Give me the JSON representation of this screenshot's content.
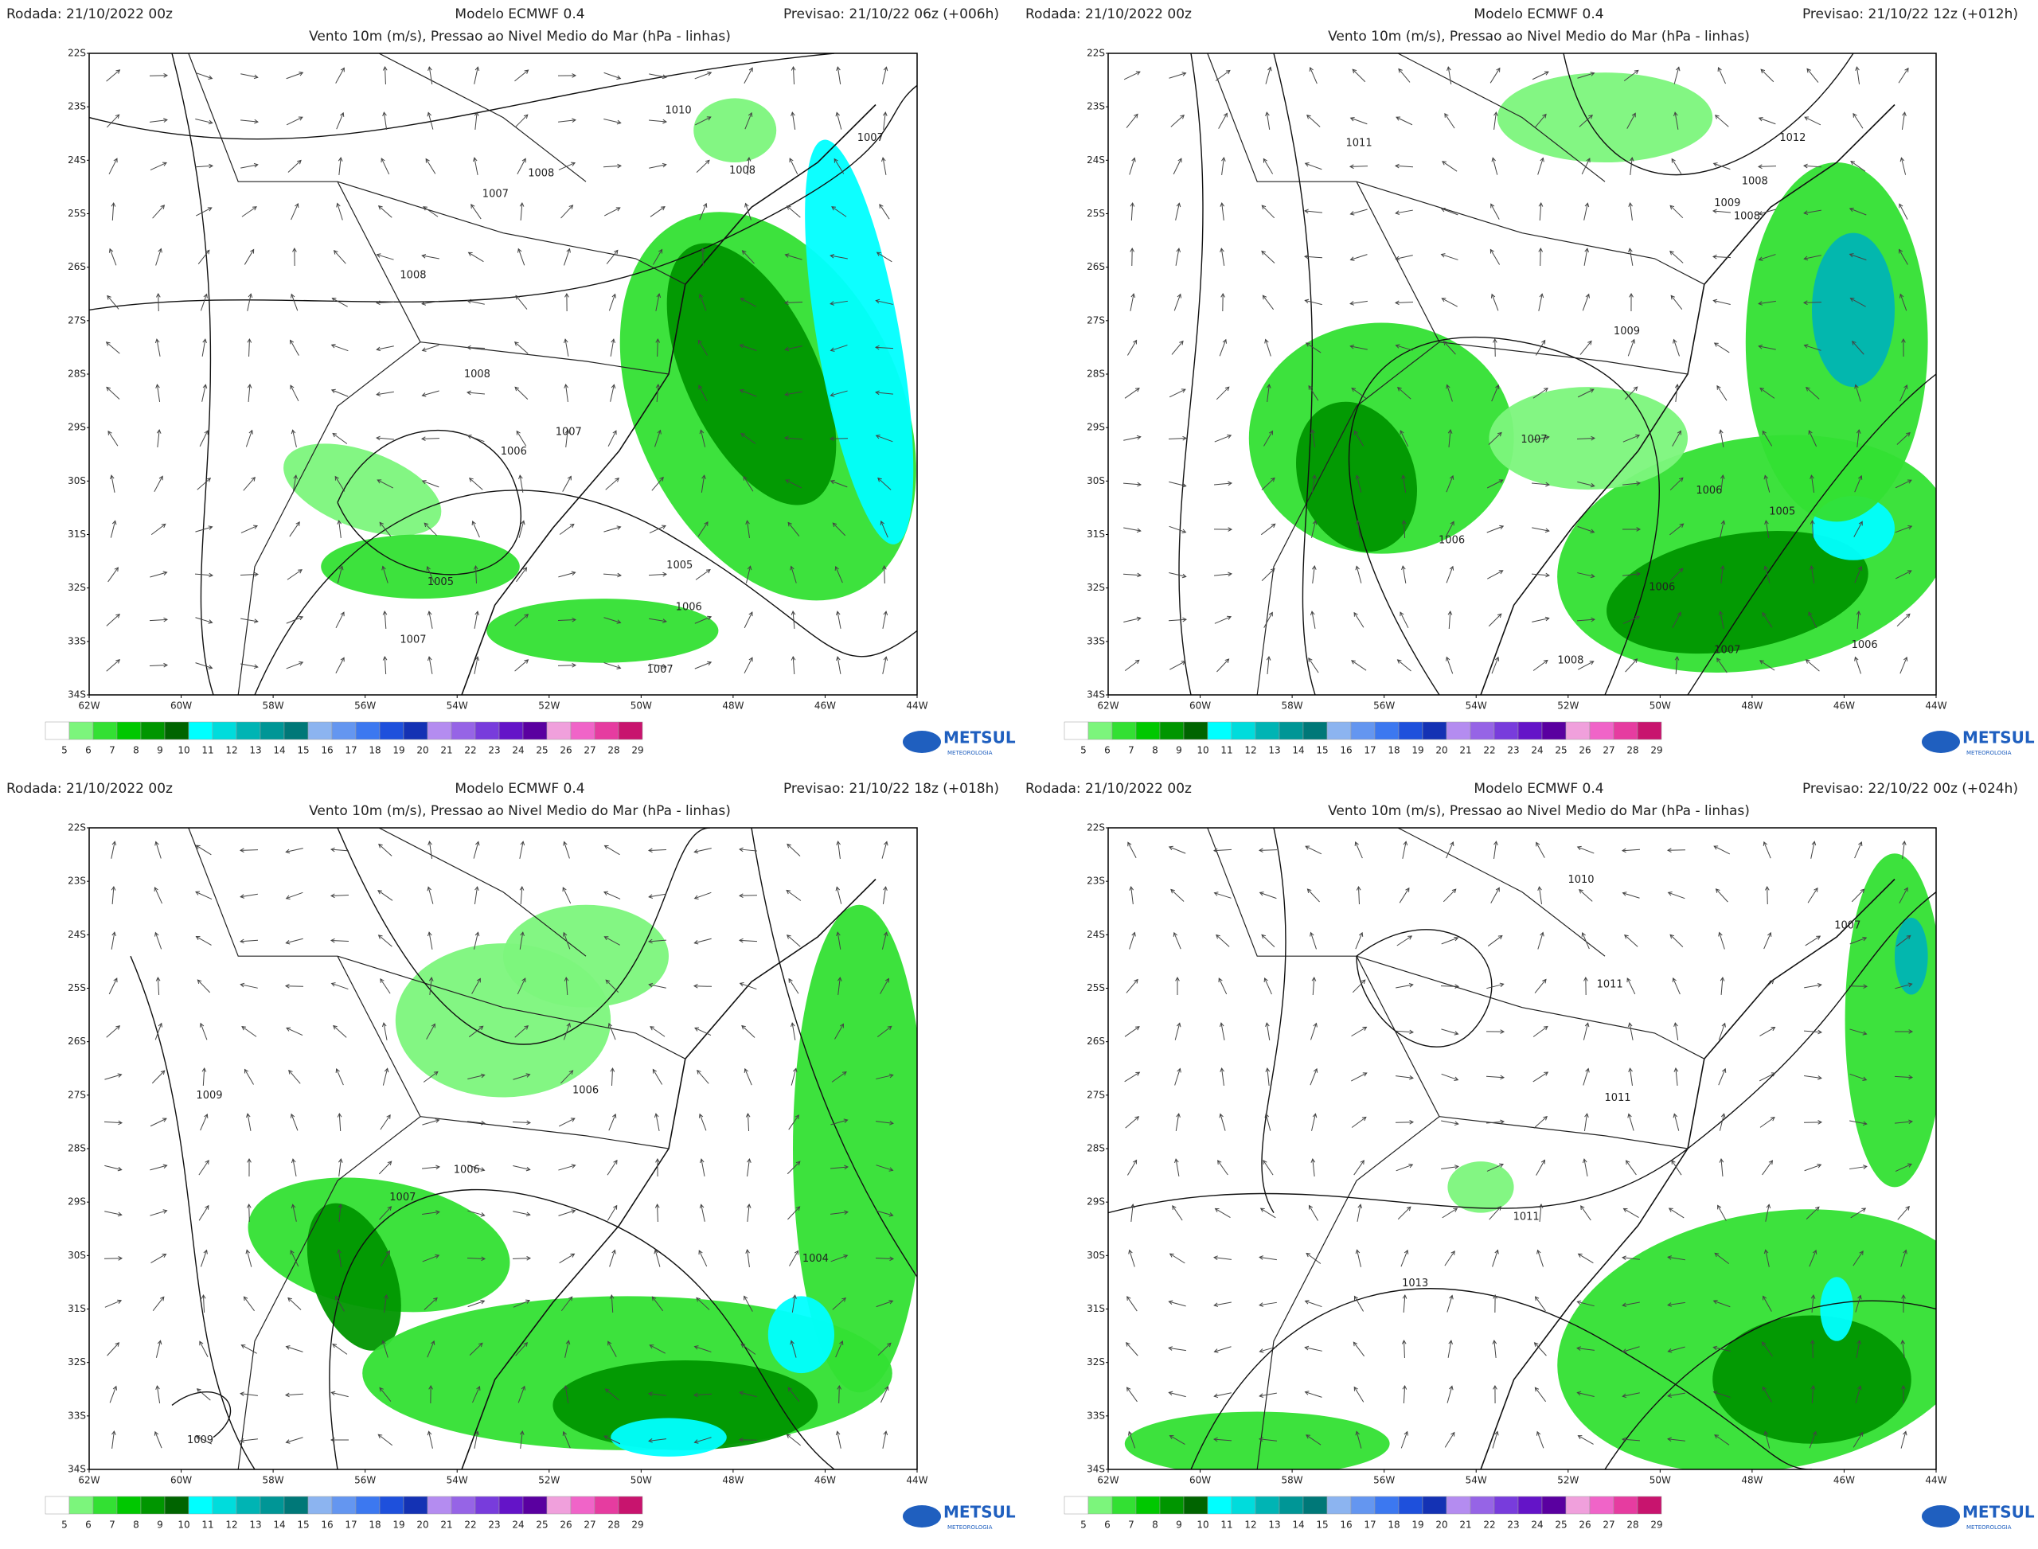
{
  "panels": [
    {
      "run": "Rodada: 21/10/2022 00z",
      "model": "Modelo ECMWF 0.4",
      "forecast": "Previsao: 21/10/22 06z (+006h)",
      "subtitle": "Vento 10m (m/s), Pressao ao Nivel Medio do Mar (hPa - linhas)",
      "isobar_labels": [
        1010,
        1007,
        1008,
        1008,
        1007,
        1008,
        1008,
        1007,
        1006,
        1005,
        1005,
        1006,
        1007,
        1007
      ]
    },
    {
      "run": "Rodada: 21/10/2022 00z",
      "model": "Modelo ECMWF 0.4",
      "forecast": "Previsao: 21/10/22 12z (+012h)",
      "subtitle": "Vento 10m (m/s), Pressao ao Nivel Medio do Mar (hPa - linhas)",
      "isobar_labels": [
        1011,
        1012,
        1008,
        1009,
        1008,
        1009,
        1007,
        1006,
        1006,
        1005,
        1006,
        1008,
        1007,
        1006
      ]
    },
    {
      "run": "Rodada: 21/10/2022 00z",
      "model": "Modelo ECMWF 0.4",
      "forecast": "Previsao: 21/10/22 18z (+018h)",
      "subtitle": "Vento 10m (m/s), Pressao ao Nivel Medio do Mar (hPa - linhas)",
      "isobar_labels": [
        1009,
        1006,
        1006,
        1007,
        1004,
        1009
      ]
    },
    {
      "run": "Rodada: 21/10/2022 00z",
      "model": "Modelo ECMWF 0.4",
      "forecast": "Previsao: 22/10/22 00z (+024h)",
      "subtitle": "Vento 10m (m/s), Pressao ao Nivel Medio do Mar (hPa - linhas)",
      "isobar_labels": [
        1010,
        1011,
        1011,
        1011,
        1013,
        1007
      ]
    }
  ],
  "lat_labels": [
    "22S",
    "23S",
    "24S",
    "25S",
    "26S",
    "27S",
    "28S",
    "29S",
    "30S",
    "31S",
    "32S",
    "33S",
    "34S"
  ],
  "lon_labels": [
    "62W",
    "60W",
    "58W",
    "56W",
    "54W",
    "52W",
    "50W",
    "48W",
    "46W",
    "44W"
  ],
  "colorbar": {
    "labels": [
      5,
      6,
      7,
      8,
      9,
      10,
      11,
      12,
      13,
      14,
      15,
      16,
      17,
      18,
      19,
      20,
      21,
      22,
      23,
      24,
      25,
      26,
      27,
      28,
      29
    ],
    "colors": [
      "#ffffff",
      "#7cf57c",
      "#33e033",
      "#00c800",
      "#009600",
      "#006400",
      "#00ffff",
      "#00dcdc",
      "#00b4b4",
      "#009696",
      "#007878",
      "#8cb4f0",
      "#6496f0",
      "#3c78f0",
      "#1e50dc",
      "#1432b4",
      "#b48cf0",
      "#9664e6",
      "#783cdc",
      "#6414c8",
      "#5a00a0",
      "#f0a0dc",
      "#f064c8",
      "#e63ca0",
      "#c8146e"
    ]
  },
  "logo": {
    "name": "METSUL",
    "tagline": "METEOROLOGIA"
  }
}
